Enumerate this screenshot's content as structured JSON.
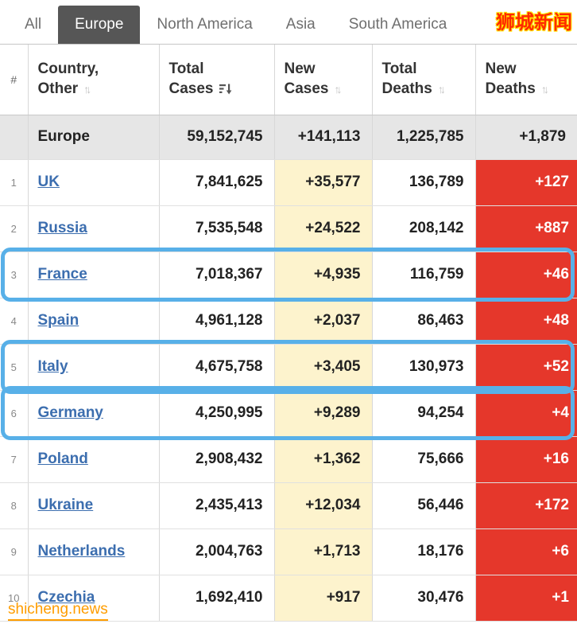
{
  "watermarks": {
    "top_right": "狮城新闻",
    "bottom_left": "shicheng.news"
  },
  "tabs": [
    {
      "label": "All",
      "active": false
    },
    {
      "label": "Europe",
      "active": true
    },
    {
      "label": "North America",
      "active": false
    },
    {
      "label": "Asia",
      "active": false
    },
    {
      "label": "South America",
      "active": false
    }
  ],
  "table": {
    "columns": [
      {
        "label": "#",
        "sort": "none"
      },
      {
        "label": "Country,\nOther",
        "sort": "inactive"
      },
      {
        "label": "Total\nCases",
        "sort": "active-desc"
      },
      {
        "label": "New\nCases",
        "sort": "inactive"
      },
      {
        "label": "Total\nDeaths",
        "sort": "inactive"
      },
      {
        "label": "New\nDeaths",
        "sort": "inactive"
      }
    ],
    "continent_row": {
      "name": "Europe",
      "total_cases": "59,152,745",
      "new_cases": "+141,113",
      "total_deaths": "1,225,785",
      "new_deaths": "+1,879"
    },
    "rows": [
      {
        "rank": "1",
        "country": "UK",
        "total_cases": "7,841,625",
        "new_cases": "+35,577",
        "total_deaths": "136,789",
        "new_deaths": "+127",
        "highlighted": false
      },
      {
        "rank": "2",
        "country": "Russia",
        "total_cases": "7,535,548",
        "new_cases": "+24,522",
        "total_deaths": "208,142",
        "new_deaths": "+887",
        "highlighted": false
      },
      {
        "rank": "3",
        "country": "France",
        "total_cases": "7,018,367",
        "new_cases": "+4,935",
        "total_deaths": "116,759",
        "new_deaths": "+46",
        "highlighted": true
      },
      {
        "rank": "4",
        "country": "Spain",
        "total_cases": "4,961,128",
        "new_cases": "+2,037",
        "total_deaths": "86,463",
        "new_deaths": "+48",
        "highlighted": false
      },
      {
        "rank": "5",
        "country": "Italy",
        "total_cases": "4,675,758",
        "new_cases": "+3,405",
        "total_deaths": "130,973",
        "new_deaths": "+52",
        "highlighted": true
      },
      {
        "rank": "6",
        "country": "Germany",
        "total_cases": "4,250,995",
        "new_cases": "+9,289",
        "total_deaths": "94,254",
        "new_deaths": "+4",
        "highlighted": true
      },
      {
        "rank": "7",
        "country": "Poland",
        "total_cases": "2,908,432",
        "new_cases": "+1,362",
        "total_deaths": "75,666",
        "new_deaths": "+16",
        "highlighted": false
      },
      {
        "rank": "8",
        "country": "Ukraine",
        "total_cases": "2,435,413",
        "new_cases": "+12,034",
        "total_deaths": "56,446",
        "new_deaths": "+172",
        "highlighted": false
      },
      {
        "rank": "9",
        "country": "Netherlands",
        "total_cases": "2,004,763",
        "new_cases": "+1,713",
        "total_deaths": "18,176",
        "new_deaths": "+6",
        "highlighted": false
      },
      {
        "rank": "10",
        "country": "Czechia",
        "total_cases": "1,692,410",
        "new_cases": "+917",
        "total_deaths": "30,476",
        "new_deaths": "+1",
        "highlighted": false
      }
    ]
  },
  "colors": {
    "active_tab_bg": "#565656",
    "new_cases_bg": "#fdf3cd",
    "new_deaths_bg": "#e5372b",
    "link": "#3c6eaf",
    "highlight_border": "#58b0e8"
  }
}
